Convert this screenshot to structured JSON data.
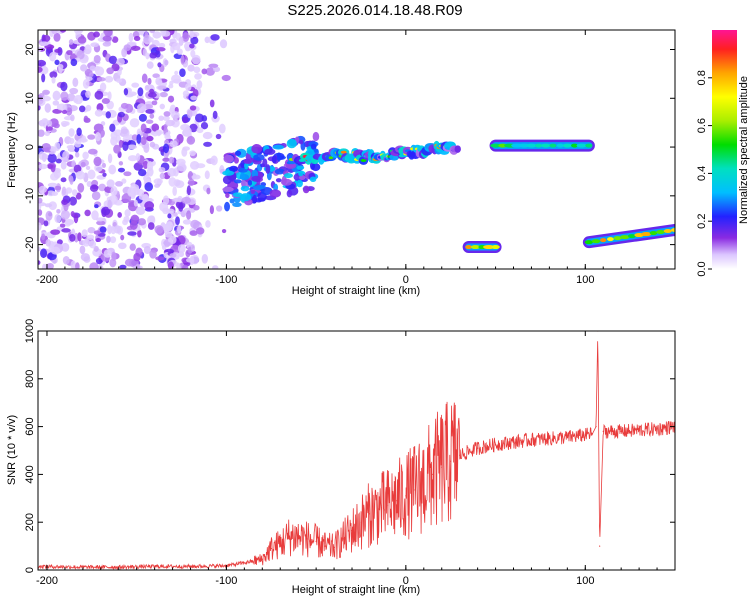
{
  "title": "S225.2026.014.18.48.R09",
  "chart_data": [
    {
      "type": "heatmap",
      "xlabel": "Height of straight line (km)",
      "ylabel": "Frequency (Hz)",
      "xlim": [
        -205,
        150
      ],
      "ylim": [
        -25,
        24
      ],
      "xticks": [
        -200,
        -100,
        0,
        100
      ],
      "yticks": [
        -20,
        -10,
        0,
        10,
        20
      ],
      "colorbar": {
        "label": "Normalized spectral amplitude",
        "range": [
          0,
          1
        ],
        "ticks": [
          0.0,
          0.2,
          0.4,
          0.6,
          0.8
        ]
      },
      "features": [
        {
          "kind": "noise_field",
          "x_range": [
            -205,
            -100
          ],
          "y_range": [
            -25,
            24
          ],
          "amplitude": [
            0.05,
            0.2
          ]
        },
        {
          "kind": "blob_track",
          "x_range": [
            -100,
            -50
          ],
          "y_range": [
            -9,
            3
          ],
          "center_freq": -5,
          "amplitude": [
            0.1,
            0.35
          ]
        },
        {
          "kind": "trace",
          "points": [
            [
              -65,
              -3
            ],
            [
              -40,
              -1.5
            ],
            [
              -25,
              -2
            ],
            [
              -15,
              -2
            ],
            [
              0,
              -1
            ],
            [
              15,
              -0.5
            ],
            [
              30,
              0
            ]
          ],
          "amplitude": [
            0.2,
            0.95
          ]
        },
        {
          "kind": "segment",
          "x_range": [
            35,
            50
          ],
          "freq": -20.5,
          "amplitude": 0.95
        },
        {
          "kind": "segment",
          "x_range": [
            50,
            102
          ],
          "freq": 0.3,
          "amplitude": 0.6
        },
        {
          "kind": "segment",
          "x_range": [
            102,
            150
          ],
          "freq_start": -19.5,
          "freq_end": -17,
          "amplitude": 0.85
        }
      ]
    },
    {
      "type": "line",
      "xlabel": "Height of straight line (km)",
      "ylabel": "SNR (10 * v/v)",
      "xlim": [
        -205,
        150
      ],
      "ylim": [
        0,
        1000
      ],
      "xticks": [
        -200,
        -100,
        0,
        100
      ],
      "yticks": [
        0,
        200,
        400,
        600,
        800,
        1000
      ],
      "series": [
        {
          "color": "#e83c3c",
          "x": [
            -205,
            -180,
            -160,
            -140,
            -120,
            -100,
            -90,
            -80,
            -75,
            -70,
            -65,
            -60,
            -55,
            -50,
            -45,
            -40,
            -35,
            -30,
            -25,
            -20,
            -15,
            -10,
            -5,
            0,
            5,
            10,
            15,
            20,
            25,
            30,
            40,
            50,
            60,
            70,
            80,
            90,
            95,
            100,
            104,
            106,
            107,
            108,
            110,
            115,
            120,
            130,
            140,
            150
          ],
          "y": [
            15,
            12,
            12,
            15,
            15,
            18,
            30,
            45,
            90,
            110,
            140,
            140,
            130,
            120,
            100,
            95,
            130,
            165,
            200,
            235,
            255,
            270,
            290,
            310,
            335,
            365,
            400,
            430,
            455,
            480,
            510,
            525,
            535,
            545,
            550,
            555,
            560,
            565,
            570,
            600,
            1000,
            100,
            580,
            580,
            580,
            585,
            590,
            600
          ]
        }
      ]
    }
  ]
}
